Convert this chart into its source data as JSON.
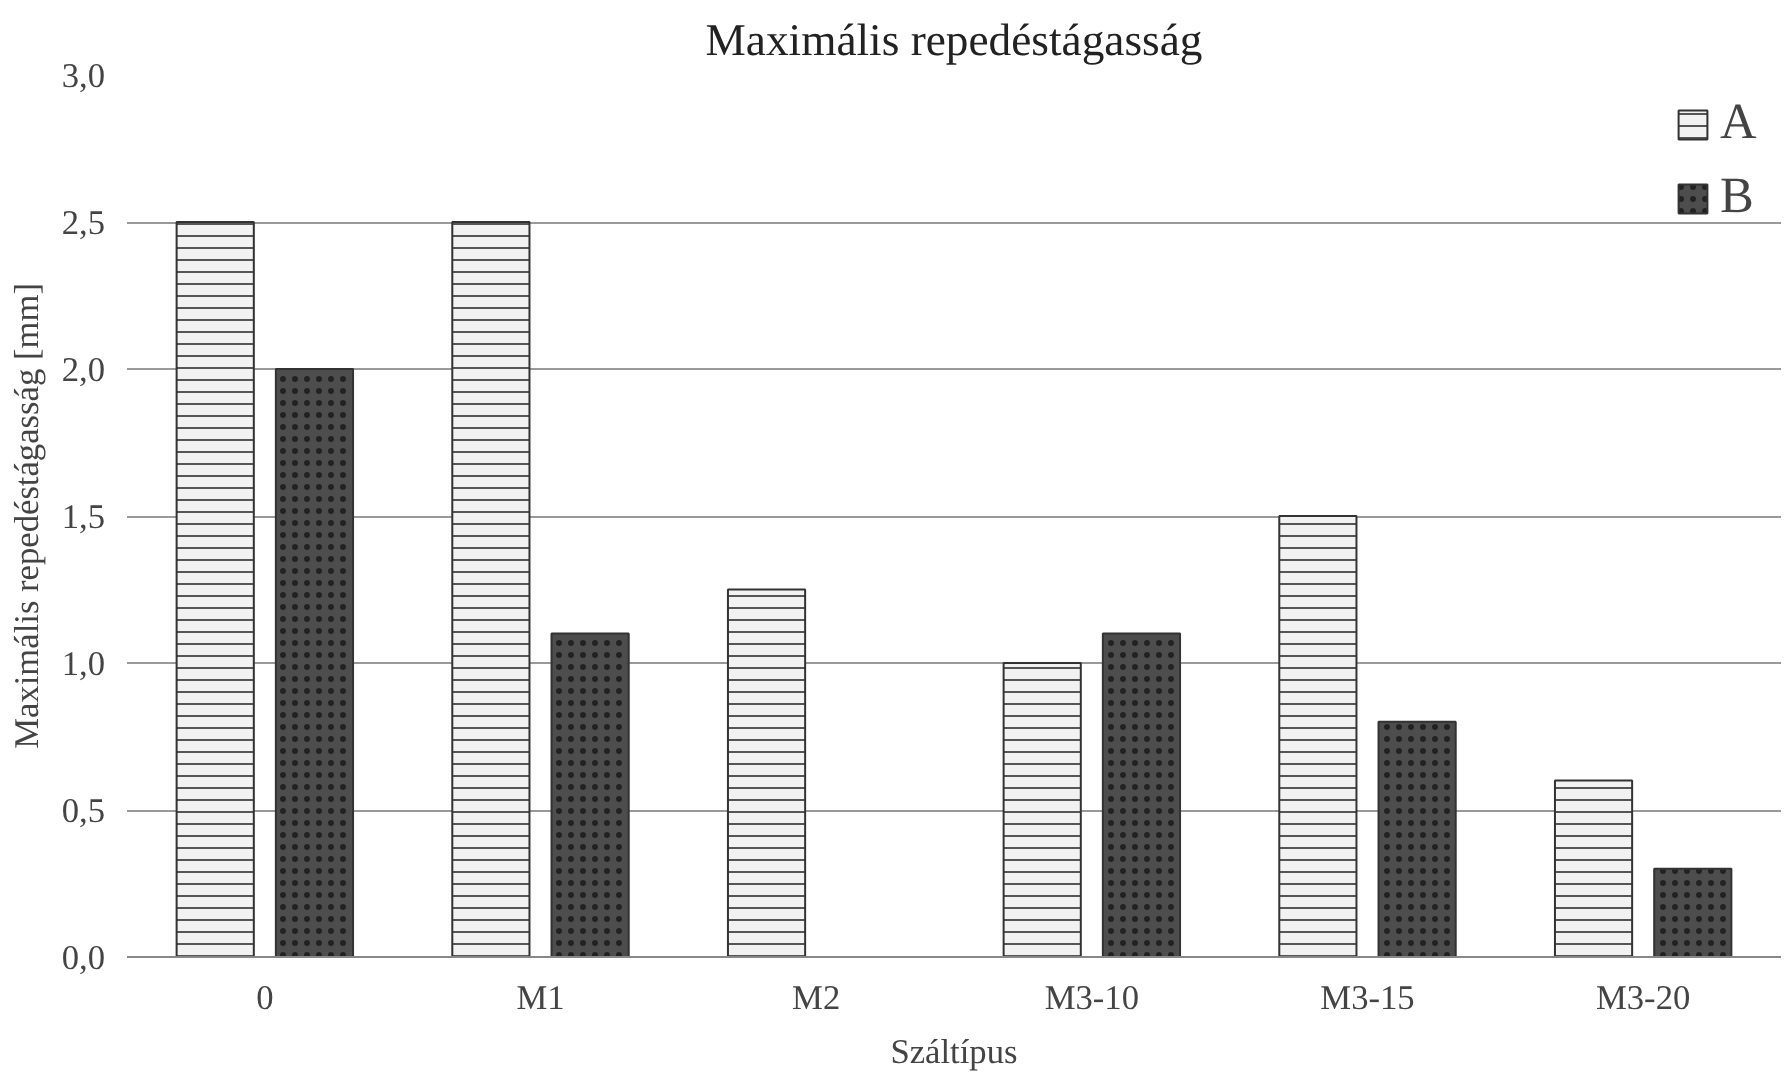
{
  "chart_data": {
    "type": "bar",
    "title": "Maximális repedéstágasság",
    "xlabel": "Száltípus",
    "ylabel": "Maximális repedéstágasság [mm]",
    "categories": [
      "0",
      "M1",
      "M2",
      "M3-10",
      "M3-15",
      "M3-20"
    ],
    "series": [
      {
        "name": "A",
        "color": "#f2f2f2",
        "values": [
          2.5,
          2.5,
          1.25,
          1.0,
          1.5,
          0.6
        ]
      },
      {
        "name": "B",
        "color": "#4d4d4d",
        "values": [
          2.0,
          1.1,
          null,
          1.1,
          0.8,
          0.3
        ]
      }
    ],
    "ylim": [
      0,
      3
    ],
    "yticks": [
      {
        "value": 0,
        "label": "0,0"
      },
      {
        "value": 0.5,
        "label": "0,5"
      },
      {
        "value": 1,
        "label": "1,0"
      },
      {
        "value": 1.5,
        "label": "1,5"
      },
      {
        "value": 2,
        "label": "2,0"
      },
      {
        "value": 2.5,
        "label": "2,5"
      },
      {
        "value": 3,
        "label": "3,0"
      }
    ],
    "grid": "y",
    "legend": "top right"
  }
}
